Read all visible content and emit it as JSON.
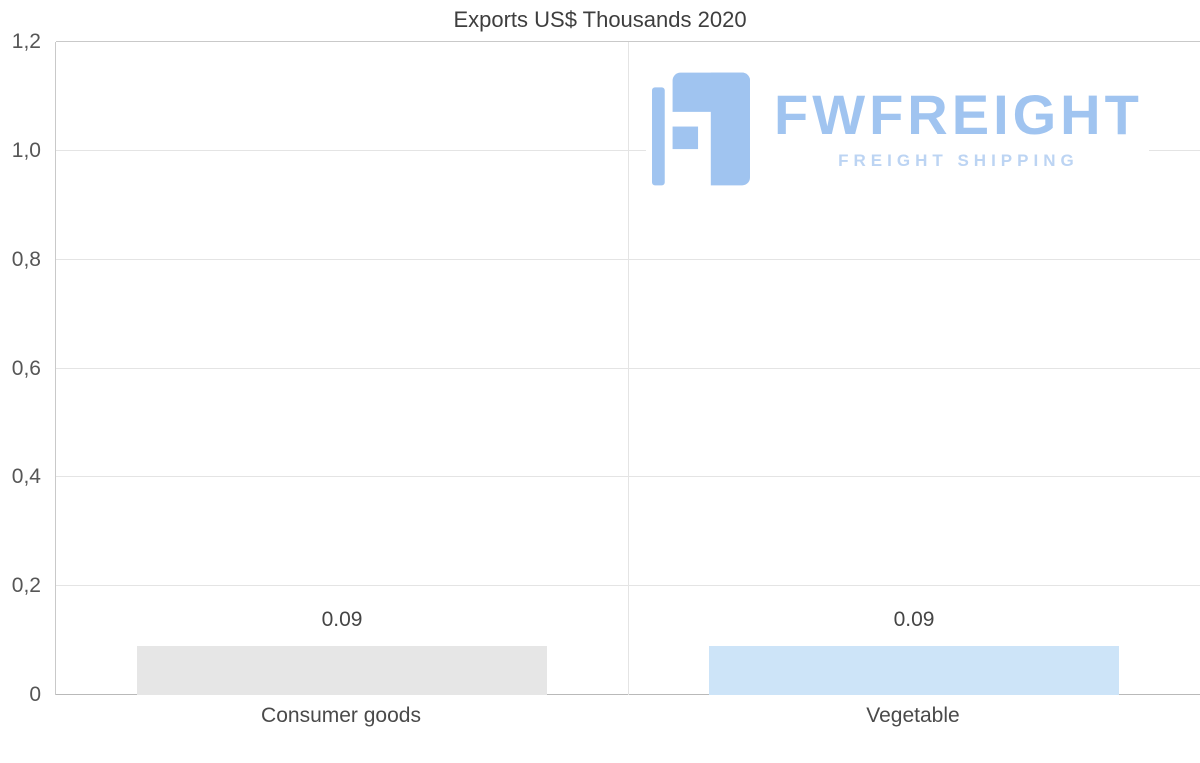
{
  "title": "Exports US$ Thousands 2020",
  "watermark": {
    "brand": "FWFREIGHT",
    "tagline": "FREIGHT SHIPPING",
    "brand_color": "#a0c4f0",
    "tagline_color": "#bcd4f3",
    "icon_color": "#a0c4f0"
  },
  "chart_data": {
    "type": "bar",
    "title": "Exports US$ Thousands 2020",
    "categories": [
      "Consumer goods",
      "Vegetable"
    ],
    "values": [
      0.09,
      0.09
    ],
    "value_labels": [
      "0.09",
      "0.09"
    ],
    "bar_colors": [
      "#e6e6e6",
      "#cde4f8"
    ],
    "xlabel": "",
    "ylabel": "",
    "ylim": [
      0,
      1.2
    ],
    "y_ticks": [
      0,
      0.2,
      0.4,
      0.6,
      0.8,
      1.0,
      1.2
    ],
    "y_tick_labels": [
      "0",
      "0,2",
      "0,4",
      "0,6",
      "0,8",
      "1,0",
      "1,2"
    ],
    "grid": true,
    "legend": "none",
    "bar_band_fraction": 0.717
  }
}
